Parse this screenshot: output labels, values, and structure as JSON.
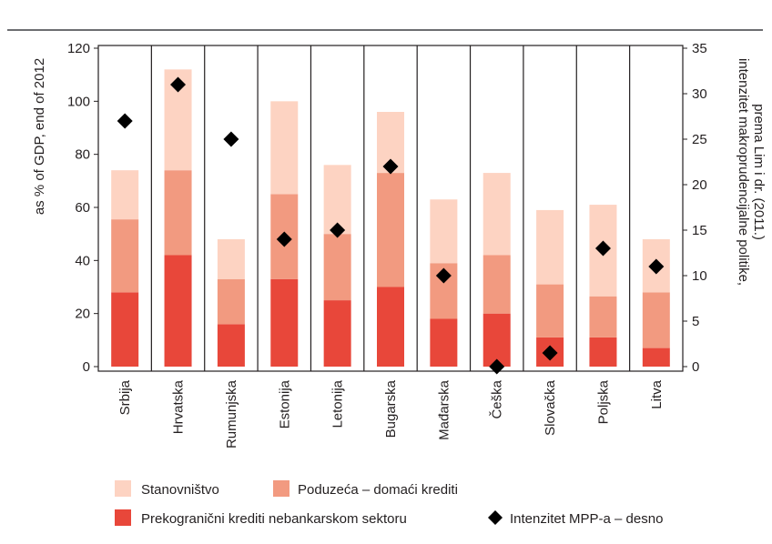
{
  "chart_data": {
    "type": "bar",
    "stacked": true,
    "title": "",
    "categories": [
      "Srbija",
      "Hrvatska",
      "Rumunjska",
      "Estonija",
      "Letonija",
      "Bugarska",
      "Mađarska",
      "Češka",
      "Slovačka",
      "Poljska",
      "Litva"
    ],
    "ylabel_left": "as % of GDP, end of 2012",
    "ylabel_right_line1": "intenzitet makroprudencijalne politike,",
    "ylabel_right_line2": "prema Lim i dr. (2011.)",
    "ylim_left": [
      0,
      120
    ],
    "yticks_left": [
      0,
      20,
      40,
      60,
      80,
      100,
      120
    ],
    "ylim_right": [
      0,
      35
    ],
    "yticks_right": [
      0,
      5,
      10,
      15,
      20,
      25,
      30,
      35
    ],
    "grid": "vertical separators between categories",
    "legend_position": "bottom",
    "series": [
      {
        "name": "Prekogranični krediti nebankarskom sektoru",
        "color": "#e8473a",
        "axis": "left",
        "values": [
          28,
          42,
          16,
          33,
          25,
          30,
          18,
          20,
          11,
          11,
          7
        ]
      },
      {
        "name": "Poduzeća – domaći krediti",
        "color": "#f29a80",
        "axis": "left",
        "values": [
          27.5,
          32,
          17,
          32,
          25,
          43,
          21,
          22,
          20,
          15.5,
          21
        ]
      },
      {
        "name": "Stanovništvo",
        "color": "#fdd3c2",
        "axis": "left",
        "values": [
          18.5,
          38,
          15,
          35,
          26,
          23,
          24,
          31,
          28,
          34.5,
          20
        ]
      }
    ],
    "marker_series": {
      "name": "Intenzitet MPP-a – desno",
      "color": "#000000",
      "axis": "right",
      "values": [
        27,
        31,
        25,
        14,
        15,
        22,
        10,
        0,
        1.5,
        13,
        11
      ]
    }
  },
  "legend": [
    {
      "label": "Stanovništvo",
      "color": "#fdd3c2",
      "shape": "square"
    },
    {
      "label": "Poduzeća – domaći krediti",
      "color": "#f29a80",
      "shape": "square"
    },
    {
      "label": "Prekogranični krediti nebankarskom sektoru",
      "color": "#e8473a",
      "shape": "square"
    },
    {
      "label": "Intenzitet MPP-a – desno",
      "color": "#000000",
      "shape": "diamond"
    }
  ]
}
